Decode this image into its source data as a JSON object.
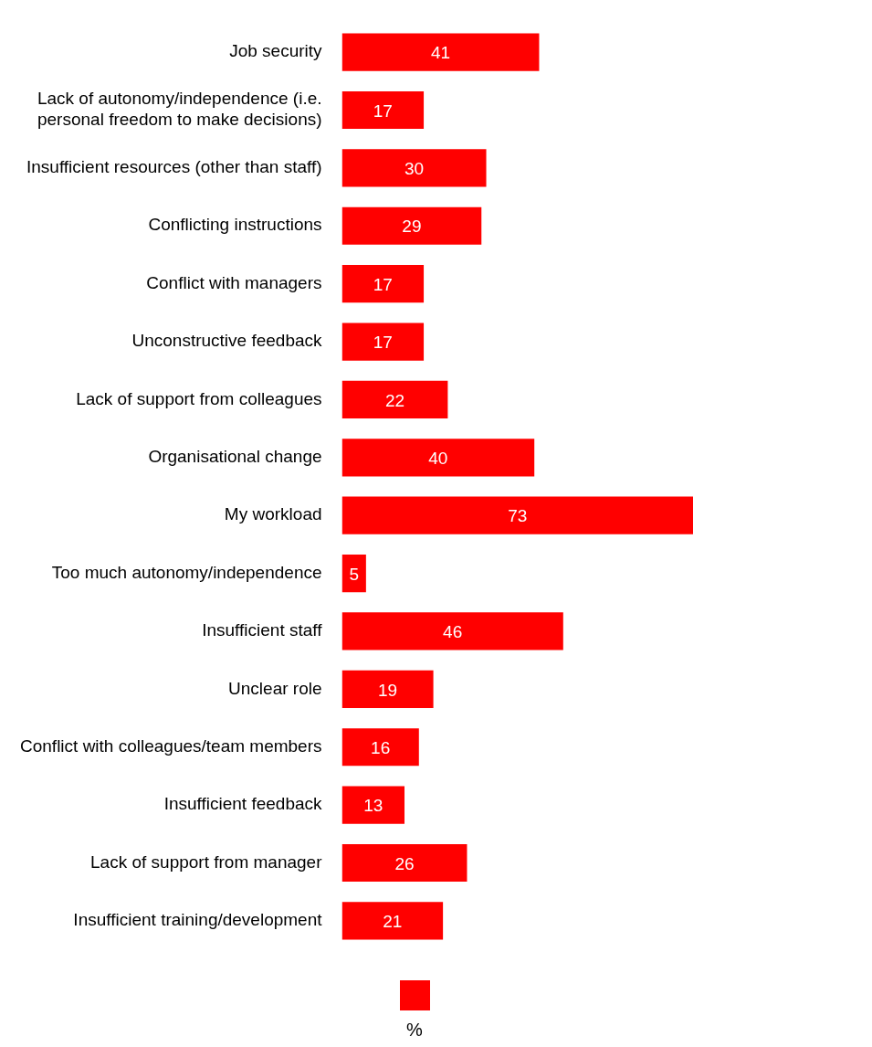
{
  "chart_data": {
    "type": "bar",
    "orientation": "horizontal",
    "categories": [
      "Job security",
      "Lack of autonomy/independence (i.e. personal freedom to make decisions)",
      "Insufficient resources (other than staff)",
      "Conflicting instructions",
      "Conflict with managers",
      "Unconstructive feedback",
      "Lack of support from colleagues",
      "Organisational change",
      "My workload",
      "Too much autonomy/independence",
      "Insufficient staff",
      "Unclear role",
      "Conflict with colleagues/team members",
      "Insufficient feedback",
      "Lack of support from manager",
      "Insufficient training/development"
    ],
    "series": [
      {
        "name": "%",
        "color": "#ff0000",
        "values": [
          41,
          17,
          30,
          29,
          17,
          17,
          22,
          40,
          73,
          5,
          46,
          19,
          16,
          13,
          26,
          21
        ]
      }
    ],
    "xlim": [
      0,
      73
    ],
    "tick_labels": "y",
    "legend": "bottom",
    "data_labels": true
  }
}
